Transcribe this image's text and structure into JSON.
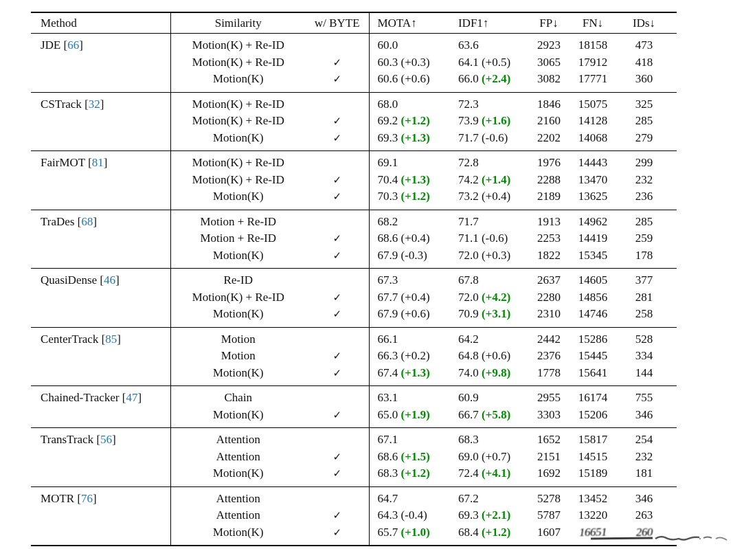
{
  "table": {
    "headers": [
      "Method",
      "Similarity",
      "w/ BYTE",
      "MOTA↑",
      "IDF1↑",
      "FP↓",
      "FN↓",
      "IDs↓"
    ],
    "check_glyph": "✓",
    "colors": {
      "citation_blue": "#2277b8",
      "improvement_green": "#008b00",
      "text": "#111111"
    },
    "groups": [
      {
        "method": "JDE",
        "cite": "66",
        "rows": [
          {
            "similarity": "Motion(K) + Re-ID",
            "byte": false,
            "mota": "60.0",
            "mota_delta": "",
            "mota_green": false,
            "idf1": "63.6",
            "idf1_delta": "",
            "idf1_green": false,
            "fp": "2923",
            "fn": "18158",
            "ids": "473",
            "smudged": false
          },
          {
            "similarity": "Motion(K) + Re-ID",
            "byte": true,
            "mota": "60.3",
            "mota_delta": "(+0.3)",
            "mota_green": false,
            "idf1": "64.1",
            "idf1_delta": "(+0.5)",
            "idf1_green": false,
            "fp": "3065",
            "fn": "17912",
            "ids": "418",
            "smudged": false
          },
          {
            "similarity": "Motion(K)",
            "byte": true,
            "mota": "60.6",
            "mota_delta": "(+0.6)",
            "mota_green": false,
            "idf1": "66.0",
            "idf1_delta": "(+2.4)",
            "idf1_green": true,
            "fp": "3082",
            "fn": "17771",
            "ids": "360",
            "smudged": false
          }
        ]
      },
      {
        "method": "CSTrack",
        "cite": "32",
        "rows": [
          {
            "similarity": "Motion(K) + Re-ID",
            "byte": false,
            "mota": "68.0",
            "mota_delta": "",
            "mota_green": false,
            "idf1": "72.3",
            "idf1_delta": "",
            "idf1_green": false,
            "fp": "1846",
            "fn": "15075",
            "ids": "325",
            "smudged": false
          },
          {
            "similarity": "Motion(K) + Re-ID",
            "byte": true,
            "mota": "69.2",
            "mota_delta": "(+1.2)",
            "mota_green": true,
            "idf1": "73.9",
            "idf1_delta": "(+1.6)",
            "idf1_green": true,
            "fp": "2160",
            "fn": "14128",
            "ids": "285",
            "smudged": false
          },
          {
            "similarity": "Motion(K)",
            "byte": true,
            "mota": "69.3",
            "mota_delta": "(+1.3)",
            "mota_green": true,
            "idf1": "71.7",
            "idf1_delta": "(-0.6)",
            "idf1_green": false,
            "fp": "2202",
            "fn": "14068",
            "ids": "279",
            "smudged": false
          }
        ]
      },
      {
        "method": "FairMOT",
        "cite": "81",
        "rows": [
          {
            "similarity": "Motion(K) + Re-ID",
            "byte": false,
            "mota": "69.1",
            "mota_delta": "",
            "mota_green": false,
            "idf1": "72.8",
            "idf1_delta": "",
            "idf1_green": false,
            "fp": "1976",
            "fn": "14443",
            "ids": "299",
            "smudged": false
          },
          {
            "similarity": "Motion(K) + Re-ID",
            "byte": true,
            "mota": "70.4",
            "mota_delta": "(+1.3)",
            "mota_green": true,
            "idf1": "74.2",
            "idf1_delta": "(+1.4)",
            "idf1_green": true,
            "fp": "2288",
            "fn": "13470",
            "ids": "232",
            "smudged": false
          },
          {
            "similarity": "Motion(K)",
            "byte": true,
            "mota": "70.3",
            "mota_delta": "(+1.2)",
            "mota_green": true,
            "idf1": "73.2",
            "idf1_delta": "(+0.4)",
            "idf1_green": false,
            "fp": "2189",
            "fn": "13625",
            "ids": "236",
            "smudged": false
          }
        ]
      },
      {
        "method": "TraDes",
        "cite": "68",
        "rows": [
          {
            "similarity": "Motion + Re-ID",
            "byte": false,
            "mota": "68.2",
            "mota_delta": "",
            "mota_green": false,
            "idf1": "71.7",
            "idf1_delta": "",
            "idf1_green": false,
            "fp": "1913",
            "fn": "14962",
            "ids": "285",
            "smudged": false
          },
          {
            "similarity": "Motion + Re-ID",
            "byte": true,
            "mota": "68.6",
            "mota_delta": "(+0.4)",
            "mota_green": false,
            "idf1": "71.1",
            "idf1_delta": "(-0.6)",
            "idf1_green": false,
            "fp": "2253",
            "fn": "14419",
            "ids": "259",
            "smudged": false
          },
          {
            "similarity": "Motion(K)",
            "byte": true,
            "mota": "67.9",
            "mota_delta": "(-0.3)",
            "mota_green": false,
            "idf1": "72.0",
            "idf1_delta": "(+0.3)",
            "idf1_green": false,
            "fp": "1822",
            "fn": "15345",
            "ids": "178",
            "smudged": false
          }
        ]
      },
      {
        "method": "QuasiDense",
        "cite": "46",
        "rows": [
          {
            "similarity": "Re-ID",
            "byte": false,
            "mota": "67.3",
            "mota_delta": "",
            "mota_green": false,
            "idf1": "67.8",
            "idf1_delta": "",
            "idf1_green": false,
            "fp": "2637",
            "fn": "14605",
            "ids": "377",
            "smudged": false
          },
          {
            "similarity": "Motion(K) + Re-ID",
            "byte": true,
            "mota": "67.7",
            "mota_delta": "(+0.4)",
            "mota_green": false,
            "idf1": "72.0",
            "idf1_delta": "(+4.2)",
            "idf1_green": true,
            "fp": "2280",
            "fn": "14856",
            "ids": "281",
            "smudged": false
          },
          {
            "similarity": "Motion(K)",
            "byte": true,
            "mota": "67.9",
            "mota_delta": "(+0.6)",
            "mota_green": false,
            "idf1": "70.9",
            "idf1_delta": "(+3.1)",
            "idf1_green": true,
            "fp": "2310",
            "fn": "14746",
            "ids": "258",
            "smudged": false
          }
        ]
      },
      {
        "method": "CenterTrack",
        "cite": "85",
        "rows": [
          {
            "similarity": "Motion",
            "byte": false,
            "mota": "66.1",
            "mota_delta": "",
            "mota_green": false,
            "idf1": "64.2",
            "idf1_delta": "",
            "idf1_green": false,
            "fp": "2442",
            "fn": "15286",
            "ids": "528",
            "smudged": false
          },
          {
            "similarity": "Motion",
            "byte": true,
            "mota": "66.3",
            "mota_delta": "(+0.2)",
            "mota_green": false,
            "idf1": "64.8",
            "idf1_delta": "(+0.6)",
            "idf1_green": false,
            "fp": "2376",
            "fn": "15445",
            "ids": "334",
            "smudged": false
          },
          {
            "similarity": "Motion(K)",
            "byte": true,
            "mota": "67.4",
            "mota_delta": "(+1.3)",
            "mota_green": true,
            "idf1": "74.0",
            "idf1_delta": "(+9.8)",
            "idf1_green": true,
            "fp": "1778",
            "fn": "15641",
            "ids": "144",
            "smudged": false
          }
        ]
      },
      {
        "method": "Chained-Tracker",
        "cite": "47",
        "rows": [
          {
            "similarity": "Chain",
            "byte": false,
            "mota": "63.1",
            "mota_delta": "",
            "mota_green": false,
            "idf1": "60.9",
            "idf1_delta": "",
            "idf1_green": false,
            "fp": "2955",
            "fn": "16174",
            "ids": "755",
            "smudged": false
          },
          {
            "similarity": "Motion(K)",
            "byte": true,
            "mota": "65.0",
            "mota_delta": "(+1.9)",
            "mota_green": true,
            "idf1": "66.7",
            "idf1_delta": "(+5.8)",
            "idf1_green": true,
            "fp": "3303",
            "fn": "15206",
            "ids": "346",
            "smudged": false
          }
        ]
      },
      {
        "method": "TransTrack",
        "cite": "56",
        "rows": [
          {
            "similarity": "Attention",
            "byte": false,
            "mota": "67.1",
            "mota_delta": "",
            "mota_green": false,
            "idf1": "68.3",
            "idf1_delta": "",
            "idf1_green": false,
            "fp": "1652",
            "fn": "15817",
            "ids": "254",
            "smudged": false
          },
          {
            "similarity": "Attention",
            "byte": true,
            "mota": "68.6",
            "mota_delta": "(+1.5)",
            "mota_green": true,
            "idf1": "69.0",
            "idf1_delta": "(+0.7)",
            "idf1_green": false,
            "fp": "2151",
            "fn": "14515",
            "ids": "232",
            "smudged": false
          },
          {
            "similarity": "Motion(K)",
            "byte": true,
            "mota": "68.3",
            "mota_delta": "(+1.2)",
            "mota_green": true,
            "idf1": "72.4",
            "idf1_delta": "(+4.1)",
            "idf1_green": true,
            "fp": "1692",
            "fn": "15189",
            "ids": "181",
            "smudged": false
          }
        ]
      },
      {
        "method": "MOTR",
        "cite": "76",
        "rows": [
          {
            "similarity": "Attention",
            "byte": false,
            "mota": "64.7",
            "mota_delta": "",
            "mota_green": false,
            "idf1": "67.2",
            "idf1_delta": "",
            "idf1_green": false,
            "fp": "5278",
            "fn": "13452",
            "ids": "346",
            "smudged": false
          },
          {
            "similarity": "Attention",
            "byte": true,
            "mota": "64.3",
            "mota_delta": "(-0.4)",
            "mota_green": false,
            "idf1": "69.3",
            "idf1_delta": "(+2.1)",
            "idf1_green": true,
            "fp": "5787",
            "fn": "13220",
            "ids": "263",
            "smudged": false
          },
          {
            "similarity": "Motion(K)",
            "byte": true,
            "mota": "65.7",
            "mota_delta": "(+1.0)",
            "mota_green": true,
            "idf1": "68.4",
            "idf1_delta": "(+1.2)",
            "idf1_green": true,
            "fp": "1607",
            "fn": "16651",
            "ids": "260",
            "smudged": true
          }
        ]
      }
    ]
  }
}
